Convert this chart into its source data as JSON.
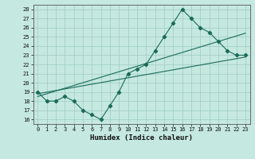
{
  "xlabel": "Humidex (Indice chaleur)",
  "bg_color": "#c5e8e0",
  "grid_color": "#9eccc4",
  "line_color": "#1a6b5a",
  "xlim": [
    -0.5,
    23.5
  ],
  "ylim": [
    15.5,
    28.5
  ],
  "xticks": [
    0,
    1,
    2,
    3,
    4,
    5,
    6,
    7,
    8,
    9,
    10,
    11,
    12,
    13,
    14,
    15,
    16,
    17,
    18,
    19,
    20,
    21,
    22,
    23
  ],
  "yticks": [
    16,
    17,
    18,
    19,
    20,
    21,
    22,
    23,
    24,
    25,
    26,
    27,
    28
  ],
  "curve1_x": [
    0,
    1,
    2,
    3,
    4,
    5,
    6,
    7,
    8,
    9,
    10,
    11,
    12,
    13,
    14,
    15,
    16,
    17,
    18,
    19,
    20,
    21,
    22,
    23
  ],
  "curve1_y": [
    19,
    18,
    18,
    18.5,
    18,
    17,
    16.5,
    16,
    17.5,
    19,
    21,
    21.5,
    22,
    23.5,
    25,
    26.5,
    28,
    27,
    26,
    25.5,
    24.5,
    23.5,
    23,
    23
  ],
  "line1_x": [
    0,
    23
  ],
  "line1_y": [
    18.8,
    22.8
  ],
  "line2_x": [
    0,
    23
  ],
  "line2_y": [
    18.5,
    25.4
  ],
  "marker": "D",
  "marker_size": 2.2,
  "linewidth": 0.8,
  "tick_fontsize": 5.0,
  "xlabel_fontsize": 6.5
}
